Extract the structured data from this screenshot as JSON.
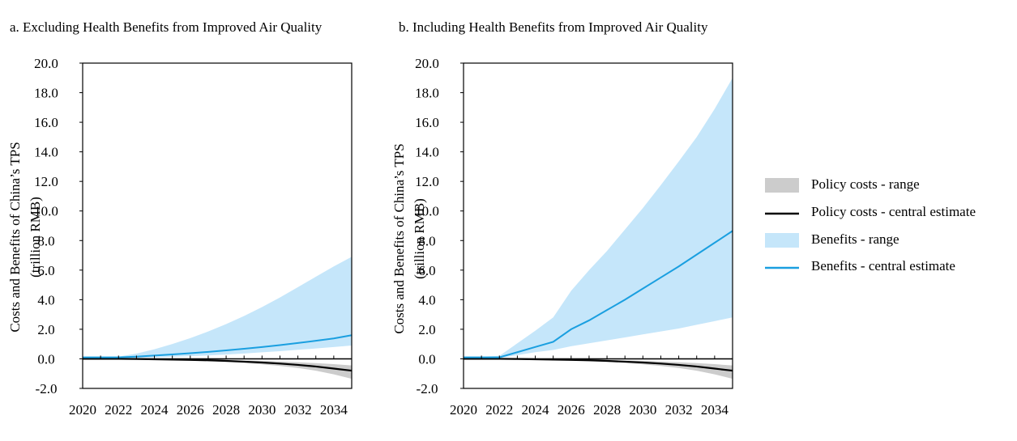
{
  "colors": {
    "benefits_range": "#c5e6fa",
    "benefits_line": "#1a9fe0",
    "costs_range": "#cccccc",
    "costs_line": "#000000",
    "axis": "#000000"
  },
  "legend": {
    "items": [
      {
        "label": "Policy costs - range",
        "kind": "swatch",
        "color_key": "costs_range"
      },
      {
        "label": "Policy costs - central estimate",
        "kind": "line",
        "color_key": "costs_line"
      },
      {
        "label": "Benefits - range",
        "kind": "swatch",
        "color_key": "benefits_range"
      },
      {
        "label": "Benefits - central estimate",
        "kind": "line",
        "color_key": "benefits_line"
      }
    ]
  },
  "chart_data": [
    {
      "type": "area",
      "title": "a. Excluding Health Benefits from Improved Air Quality",
      "ylabel": [
        "Costs and Benefits of China’s TPS",
        "(trillion RMB)"
      ],
      "xlabel": "",
      "xlim": [
        2020,
        2035
      ],
      "ylim": [
        -2,
        20
      ],
      "xticks": [
        2020,
        2022,
        2024,
        2026,
        2028,
        2030,
        2032,
        2034
      ],
      "xtick_labels": [
        "2020",
        "2022",
        "2024",
        "2026",
        "2028",
        "2030",
        "2032",
        "2034"
      ],
      "yticks": [
        -2,
        0,
        2,
        4,
        6,
        8,
        10,
        12,
        14,
        16,
        18,
        20
      ],
      "ytick_labels": [
        "-2.0",
        "0.0",
        "2.0",
        "4.0",
        "6.0",
        "8.0",
        "10.0",
        "12.0",
        "14.0",
        "16.0",
        "18.0",
        "20.0"
      ],
      "x": [
        2020,
        2021,
        2022,
        2023,
        2024,
        2025,
        2026,
        2027,
        2028,
        2029,
        2030,
        2031,
        2032,
        2033,
        2034,
        2035
      ],
      "benefits_central": [
        0.1,
        0.1,
        0.1,
        0.15,
        0.22,
        0.3,
        0.38,
        0.47,
        0.57,
        0.68,
        0.8,
        0.93,
        1.07,
        1.22,
        1.38,
        1.6
      ],
      "benefits_low": [
        0.05,
        0.05,
        0.05,
        0.07,
        0.1,
        0.14,
        0.18,
        0.23,
        0.29,
        0.36,
        0.44,
        0.52,
        0.61,
        0.7,
        0.8,
        0.9
      ],
      "benefits_high": [
        0.1,
        0.1,
        0.15,
        0.35,
        0.65,
        1.0,
        1.4,
        1.85,
        2.35,
        2.9,
        3.5,
        4.15,
        4.85,
        5.55,
        6.25,
        6.9
      ],
      "costs_central": [
        0,
        0,
        0,
        -0.01,
        -0.03,
        -0.05,
        -0.07,
        -0.1,
        -0.14,
        -0.19,
        -0.25,
        -0.32,
        -0.41,
        -0.52,
        -0.66,
        -0.8
      ],
      "costs_low": [
        0,
        0,
        0,
        -0.01,
        -0.04,
        -0.07,
        -0.1,
        -0.14,
        -0.2,
        -0.28,
        -0.37,
        -0.48,
        -0.62,
        -0.8,
        -1.05,
        -1.35
      ],
      "costs_high": [
        0,
        0,
        0,
        0,
        -0.02,
        -0.03,
        -0.04,
        -0.06,
        -0.08,
        -0.11,
        -0.14,
        -0.18,
        -0.23,
        -0.29,
        -0.36,
        -0.45
      ]
    },
    {
      "type": "area",
      "title": "b. Including Health Benefits from Improved Air Quality",
      "ylabel": [
        "Costs and Benefits of China’s TPS",
        "(trillion RMB)"
      ],
      "xlabel": "",
      "xlim": [
        2020,
        2035
      ],
      "ylim": [
        -2,
        20
      ],
      "xticks": [
        2020,
        2022,
        2024,
        2026,
        2028,
        2030,
        2032,
        2034
      ],
      "xtick_labels": [
        "2020",
        "2022",
        "2024",
        "2026",
        "2028",
        "2030",
        "2032",
        "2034"
      ],
      "yticks": [
        -2,
        0,
        2,
        4,
        6,
        8,
        10,
        12,
        14,
        16,
        18,
        20
      ],
      "ytick_labels": [
        "-2.0",
        "0.0",
        "2.0",
        "4.0",
        "6.0",
        "8.0",
        "10.0",
        "12.0",
        "14.0",
        "16.0",
        "18.0",
        "20.0"
      ],
      "x": [
        2020,
        2021,
        2022,
        2023,
        2024,
        2025,
        2026,
        2027,
        2028,
        2029,
        2030,
        2031,
        2032,
        2033,
        2034,
        2035
      ],
      "benefits_central": [
        0.1,
        0.1,
        0.1,
        0.45,
        0.8,
        1.15,
        2.0,
        2.6,
        3.3,
        4.0,
        4.75,
        5.5,
        6.25,
        7.05,
        7.85,
        8.65
      ],
      "benefits_low": [
        0.05,
        0.05,
        0.05,
        0.25,
        0.45,
        0.6,
        0.85,
        1.05,
        1.25,
        1.45,
        1.65,
        1.85,
        2.05,
        2.3,
        2.55,
        2.8
      ],
      "benefits_high": [
        0.15,
        0.15,
        0.2,
        1.05,
        1.9,
        2.8,
        4.6,
        6.0,
        7.3,
        8.75,
        10.2,
        11.75,
        13.35,
        15.0,
        16.9,
        19.0
      ],
      "costs_central": [
        0,
        0,
        0,
        -0.01,
        -0.03,
        -0.05,
        -0.07,
        -0.1,
        -0.14,
        -0.19,
        -0.25,
        -0.32,
        -0.41,
        -0.52,
        -0.66,
        -0.8
      ],
      "costs_low": [
        0,
        0,
        0,
        -0.01,
        -0.04,
        -0.07,
        -0.1,
        -0.14,
        -0.2,
        -0.28,
        -0.37,
        -0.48,
        -0.62,
        -0.8,
        -1.05,
        -1.35
      ],
      "costs_high": [
        0,
        0,
        0,
        0,
        -0.02,
        -0.03,
        -0.04,
        -0.06,
        -0.08,
        -0.11,
        -0.14,
        -0.18,
        -0.23,
        -0.29,
        -0.36,
        -0.45
      ]
    }
  ]
}
